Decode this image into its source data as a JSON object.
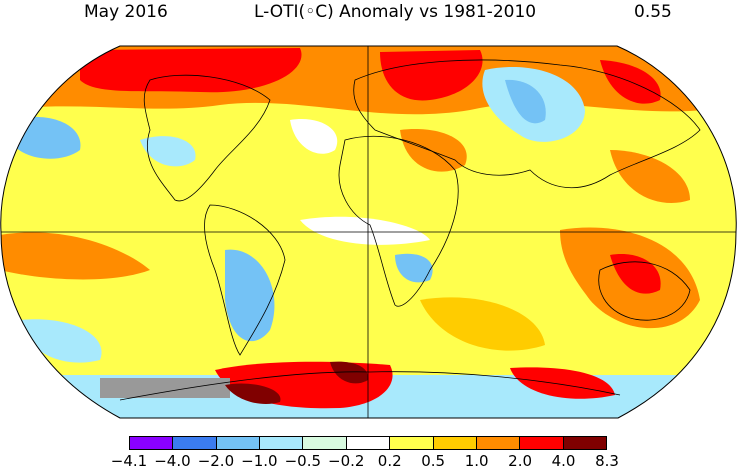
{
  "header": {
    "date": "May 2016",
    "title": "L-OTI(◦C) Anomaly vs 1981-2010",
    "global_mean": "0.55"
  },
  "map": {
    "projection": "Robinson",
    "background_color": "#ffffff",
    "missing_data_color": "#999999",
    "graticule": [
      "equator",
      "prime-meridian"
    ]
  },
  "legend": {
    "colors": [
      "#8a00ff",
      "#3b7cf0",
      "#74c2f5",
      "#a8e9fc",
      "#d8fbe0",
      "#ffffff",
      "#ffff4d",
      "#ffcc00",
      "#ff8c00",
      "#ff0000",
      "#800000"
    ],
    "ticks": [
      "−4.1",
      "−4.0",
      "−2.0",
      "−1.0",
      "−0.5",
      "−0.2",
      "0.2",
      "0.5",
      "1.0",
      "2.0",
      "4.0",
      "8.3"
    ]
  }
}
